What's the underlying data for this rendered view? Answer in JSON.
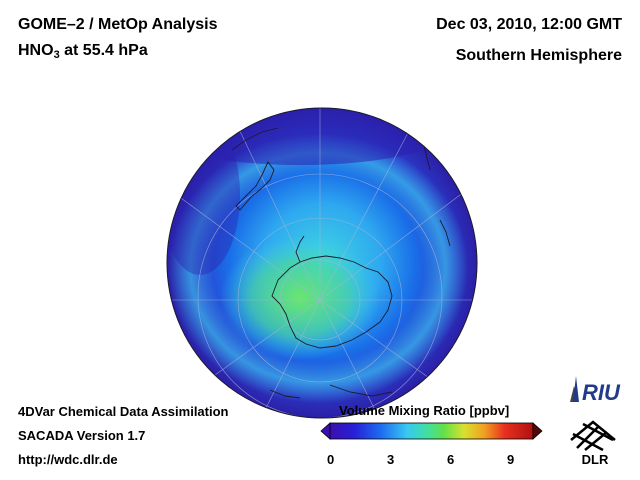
{
  "header": {
    "instrument": "GOME–2 / MetOp Analysis",
    "species": "HNO",
    "species_sub": "3",
    "level": " at 55.4 hPa",
    "datetime": "Dec 03, 2010, 12:00 GMT",
    "region": "Southern Hemisphere"
  },
  "footer": {
    "line1": "4DVar Chemical Data Assimilation",
    "line2": "SACADA Version 1.7",
    "line3": "http://wdc.dlr.de"
  },
  "colorbar": {
    "title": "Volume Mixing Ratio [ppbv]",
    "ticks": [
      "0",
      "3",
      "6",
      "9"
    ]
  },
  "logos": {
    "riu": "RIU",
    "dlr": "DLR"
  },
  "colors": {
    "ocean_outer": "#2b1fa6",
    "mid_blue": "#1f6fe8",
    "cyan": "#3fcfee",
    "green": "#5ce06a"
  }
}
